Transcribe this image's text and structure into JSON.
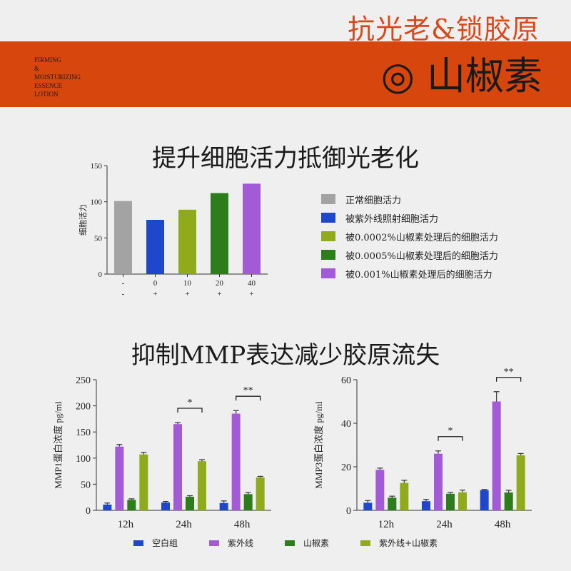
{
  "header": {
    "top_title": "抗光老&锁胶原",
    "band_small_lines": [
      "FIRMING",
      "&",
      "MOISTURIZING",
      "ESSENCE",
      "LOTION"
    ],
    "band_main": "◎ 山椒素"
  },
  "section1": {
    "title": "提升细胞活力抵御光老化"
  },
  "section2": {
    "title": "抑制MMP表达减少胶原流失"
  },
  "chart_data": [
    {
      "type": "bar",
      "title": "",
      "ylabel": "细胞活力",
      "ylim": [
        0,
        150
      ],
      "yticks": [
        0,
        50,
        100,
        150
      ],
      "categories_row1": [
        "-",
        "0",
        "10",
        "20",
        "40"
      ],
      "categories_row2": [
        "-",
        "+",
        "+",
        "+",
        "+"
      ],
      "values": [
        101,
        75,
        89,
        112,
        125
      ],
      "colors": [
        "#a3a3a3",
        "#1f47cc",
        "#8faa1b",
        "#2e7d1c",
        "#a25ad6"
      ],
      "legend": [
        "正常细胞活力",
        "被紫外线照射细胞活力",
        "被0.0002%山椒素处理后的细胞活力",
        "被0.0005%山椒素处理后的细胞活力",
        "被0.001%山椒素处理后的细胞活力"
      ],
      "legend_position": "right"
    },
    {
      "type": "bar",
      "ylabel": "MMP1蛋白浓度 pg/ml",
      "ylim": [
        0,
        250
      ],
      "yticks": [
        0,
        50,
        100,
        150,
        200,
        250
      ],
      "categories": [
        "12h",
        "24h",
        "48h"
      ],
      "series": [
        {
          "name": "空白组",
          "values": [
            11,
            15,
            14
          ],
          "errors": [
            3,
            2,
            4
          ]
        },
        {
          "name": "紫外线",
          "values": [
            122,
            165,
            185
          ],
          "errors": [
            4,
            3,
            6
          ]
        },
        {
          "name": "山椒素",
          "values": [
            20,
            26,
            31
          ],
          "errors": [
            2,
            2,
            3
          ]
        },
        {
          "name": "紫外线+山椒素",
          "values": [
            107,
            94,
            63
          ],
          "errors": [
            4,
            3,
            2
          ]
        }
      ],
      "significance": [
        {
          "category": "24h",
          "label": "*"
        },
        {
          "category": "48h",
          "label": "**"
        }
      ]
    },
    {
      "type": "bar",
      "ylabel": "MMP3蛋白浓度 pg/ml",
      "ylim": [
        0,
        60
      ],
      "yticks": [
        0,
        20,
        40,
        60
      ],
      "categories": [
        "12h",
        "24h",
        "48h"
      ],
      "series": [
        {
          "name": "空白组",
          "values": [
            3.5,
            4.2,
            9.3
          ],
          "errors": [
            1,
            0.8,
            0.3
          ]
        },
        {
          "name": "紫外线",
          "values": [
            18.6,
            26,
            50
          ],
          "errors": [
            0.8,
            1.3,
            4.5
          ]
        },
        {
          "name": "山椒素",
          "values": [
            5.8,
            7.6,
            8.2
          ],
          "errors": [
            0.7,
            0.6,
            1
          ]
        },
        {
          "name": "紫外线+山椒素",
          "values": [
            12.6,
            8.3,
            25.3
          ],
          "errors": [
            1.2,
            1,
            0.8
          ]
        }
      ],
      "significance": [
        {
          "category": "24h",
          "label": "*"
        },
        {
          "category": "48h",
          "label": "**"
        }
      ]
    }
  ],
  "legend2": [
    {
      "label": "空白组",
      "color": "#1f47cc"
    },
    {
      "label": "紫外线",
      "color": "#a25ad6"
    },
    {
      "label": "山椒素",
      "color": "#2e7d1c"
    },
    {
      "label": "紫外线+山椒素",
      "color": "#8faa1b"
    }
  ]
}
